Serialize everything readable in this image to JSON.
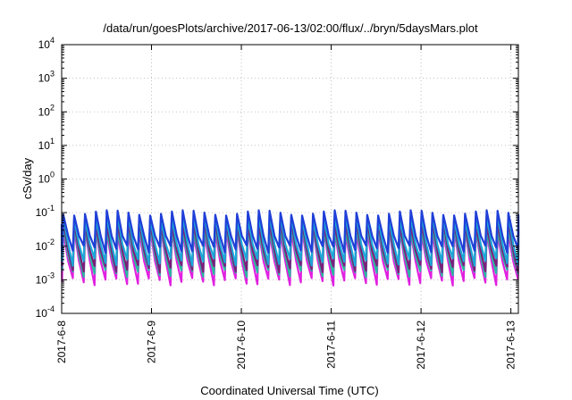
{
  "chart_data": {
    "type": "line",
    "title": "/data/run/goesPlots/archive/2017-06-13/02:00/flux/../bryn/5daysMars.plot",
    "xlabel": "Coordinated Universal Time (UTC)",
    "ylabel": "cSv/day",
    "y_scale": "log",
    "ylim": [
      0.0001,
      10000
    ],
    "y_ticks": [
      {
        "base": "10",
        "exp": "-4",
        "value": 0.0001
      },
      {
        "base": "10",
        "exp": "-3",
        "value": 0.001
      },
      {
        "base": "10",
        "exp": "-2",
        "value": 0.01
      },
      {
        "base": "10",
        "exp": "-1",
        "value": 0.1
      },
      {
        "base": "10",
        "exp": "0",
        "value": 1
      },
      {
        "base": "10",
        "exp": "1",
        "value": 10
      },
      {
        "base": "10",
        "exp": "2",
        "value": 100
      },
      {
        "base": "10",
        "exp": "3",
        "value": 1000
      },
      {
        "base": "10",
        "exp": "4",
        "value": 10000
      }
    ],
    "xlim": [
      "2017-06-08T00:00",
      "2017-06-13T02:00"
    ],
    "x_ticks": [
      "2017-6-8",
      "2017-6-9",
      "2017-6-10",
      "2017-6-11",
      "2017-6-12",
      "2017-6-13"
    ],
    "grid": true,
    "cycle_period_hours": 2.9,
    "series": [
      {
        "color": "#1f3fd8",
        "peak": 0.1,
        "trough": 0.0085
      },
      {
        "color": "#1aa8d8",
        "peak": 0.075,
        "trough": 0.0035
      },
      {
        "color": "#7a1f7a",
        "peak": 0.05,
        "trough": 0.0022
      },
      {
        "color": "#2ab8a0",
        "peak": 0.035,
        "trough": 0.0016
      },
      {
        "color": "#e020e0",
        "peak": 0.028,
        "trough": 0.0009
      }
    ]
  }
}
